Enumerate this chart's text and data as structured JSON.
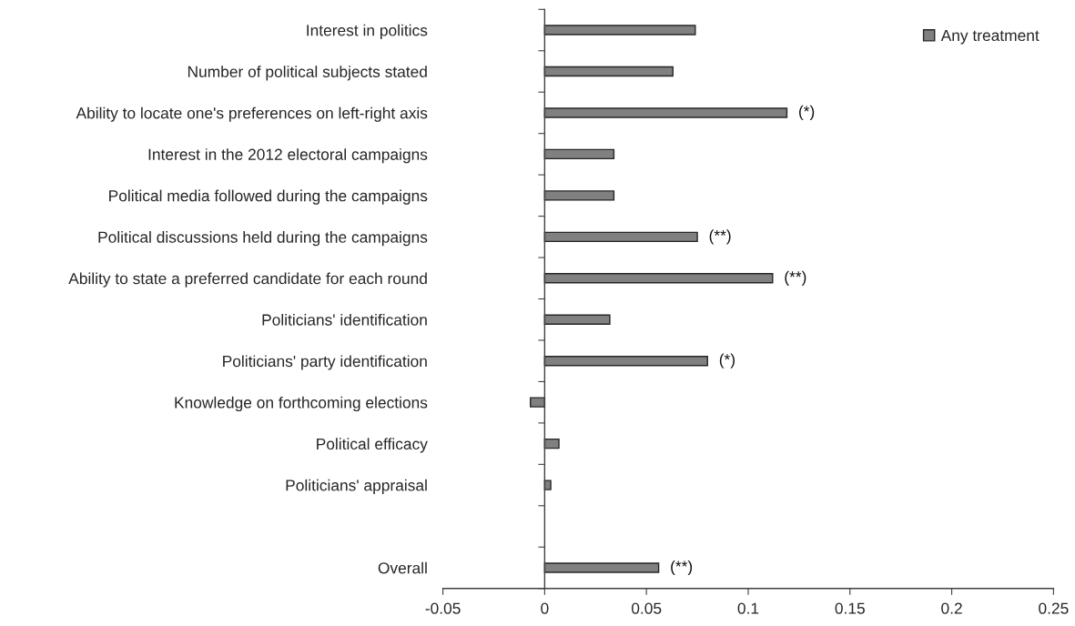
{
  "chart_data": {
    "type": "bar",
    "orientation": "horizontal",
    "categories": [
      "Interest in politics",
      "Number of political subjects stated",
      "Ability to locate one's preferences on left-right axis",
      "Interest in the 2012 electoral campaigns",
      "Political media followed during the campaigns",
      "Political discussions held during the campaigns",
      "Ability to state a preferred candidate for each round",
      "Politicians' identification",
      "Politicians' party identification",
      "Knowledge on forthcoming elections",
      "Political efficacy",
      "Politicians' appraisal",
      null,
      "Overall"
    ],
    "series": [
      {
        "name": "Any treatment",
        "color": "#808080",
        "values": [
          0.074,
          0.063,
          0.119,
          0.034,
          0.034,
          0.075,
          0.112,
          0.032,
          0.08,
          -0.007,
          0.007,
          0.003,
          null,
          0.056
        ]
      }
    ],
    "xlim": [
      -0.05,
      0.25
    ],
    "xticks": [
      -0.05,
      0,
      0.05,
      0.1,
      0.15,
      0.2,
      0.25
    ],
    "annotations": [
      {
        "text": "(*)",
        "x": 0.119,
        "y": "Ability to locate one's preferences on left-right axis"
      },
      {
        "text": "(**)",
        "x": 0.075,
        "y": "Political discussions held during the campaigns"
      },
      {
        "text": "(**)",
        "x": 0.112,
        "y": "Ability to state a preferred candidate for each round"
      },
      {
        "text": "(*)",
        "x": 0.08,
        "y": "Politicians' party identification"
      },
      {
        "text": "(**)",
        "x": 0.056,
        "y": "Overall"
      }
    ],
    "legend": "top right"
  }
}
